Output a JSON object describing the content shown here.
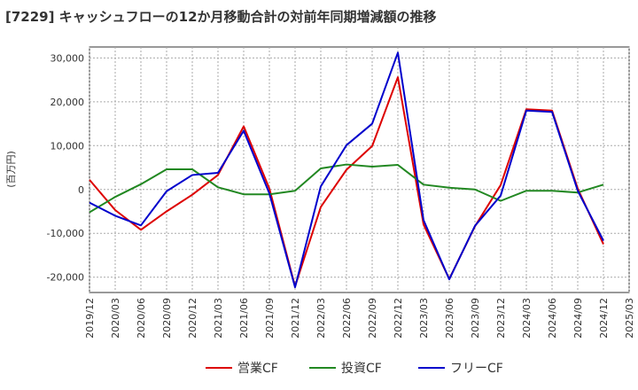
{
  "title": "[7229]  キャッシュフローの12か月移動合計の対前年同期増減額の推移",
  "chart_data": {
    "type": "line",
    "ylabel": "(百万円)",
    "ylim": [
      -23500,
      32500
    ],
    "yticks": [
      -20000,
      -10000,
      0,
      10000,
      20000,
      30000
    ],
    "ytick_labels": [
      "-20,000",
      "-10,000",
      "0",
      "10,000",
      "20,000",
      "30,000"
    ],
    "grid": true,
    "legend_position": "bottom-center",
    "x_ticks": [
      "2019/12",
      "2020/03",
      "2020/06",
      "2020/09",
      "2020/12",
      "2021/03",
      "2021/06",
      "2021/09",
      "2021/12",
      "2022/03",
      "2022/06",
      "2022/09",
      "2022/12",
      "2023/03",
      "2023/06",
      "2023/09",
      "2023/12",
      "2024/03",
      "2024/06",
      "2024/09",
      "2024/12",
      "2025/03"
    ],
    "categories": [
      "2019/12",
      "2020/03",
      "2020/06",
      "2020/09",
      "2020/12",
      "2021/03",
      "2021/06",
      "2021/09",
      "2021/12",
      "2022/03",
      "2022/06",
      "2022/09",
      "2022/12",
      "2023/03",
      "2023/06",
      "2023/09",
      "2023/12",
      "2024/03",
      "2024/06",
      "2024/09",
      "2024/12"
    ],
    "series": [
      {
        "name": "営業CF",
        "color": "#dd0000",
        "values": [
          2200,
          -4700,
          -9200,
          -5000,
          -1200,
          3300,
          14400,
          200,
          -22100,
          -4000,
          4500,
          9900,
          25600,
          -8000,
          -20400,
          -8400,
          1000,
          18300,
          18000,
          200,
          -12500
        ]
      },
      {
        "name": "投資CF",
        "color": "#228822",
        "values": [
          -5200,
          -1700,
          1200,
          4600,
          4600,
          500,
          -1100,
          -1100,
          -300,
          4800,
          5700,
          5200,
          5600,
          1100,
          400,
          0,
          -2600,
          -300,
          -300,
          -700,
          1100
        ]
      },
      {
        "name": "フリーCF",
        "color": "#0000cc",
        "values": [
          -3000,
          -6000,
          -8200,
          -400,
          3300,
          3800,
          13400,
          -900,
          -22300,
          700,
          10100,
          15000,
          31200,
          -7000,
          -20500,
          -8300,
          -1400,
          18000,
          17700,
          -300,
          -11700
        ]
      }
    ]
  }
}
